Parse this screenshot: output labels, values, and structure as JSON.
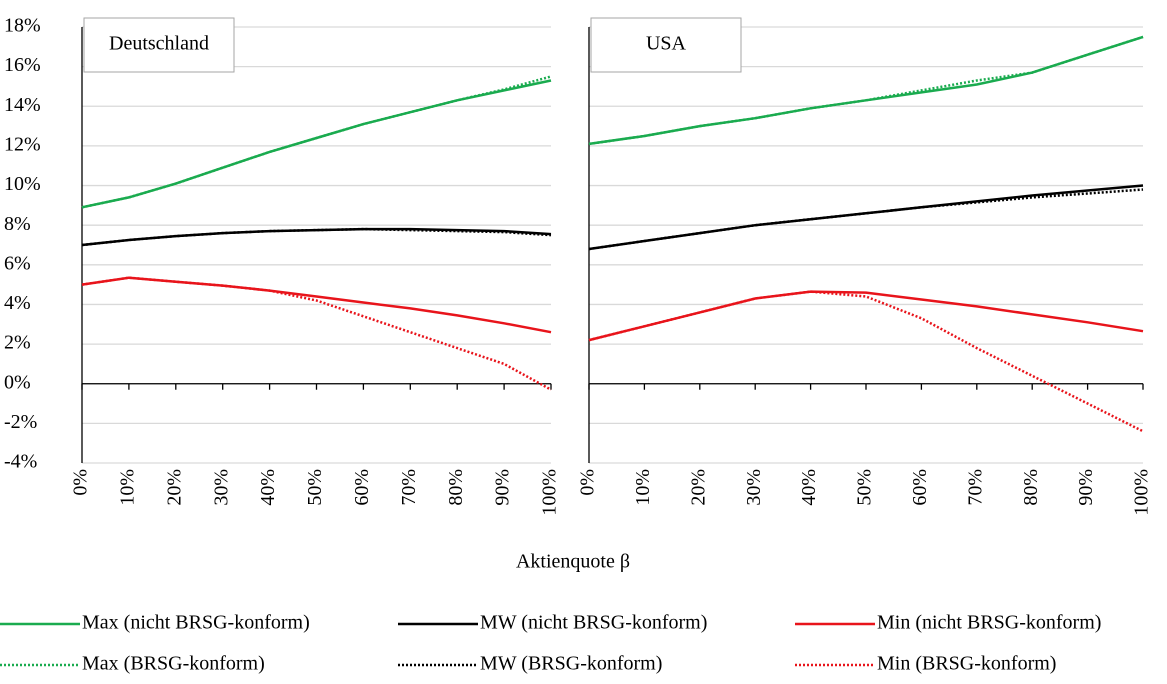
{
  "chart_data": {
    "type": "line",
    "xlabel": "Aktienquote β",
    "categories": [
      "0%",
      "10%",
      "20%",
      "30%",
      "40%",
      "50%",
      "60%",
      "70%",
      "80%",
      "90%",
      "100%"
    ],
    "ylim": [
      -4,
      18
    ],
    "yticks": [
      {
        "value": 18,
        "label": "18%"
      },
      {
        "value": 16,
        "label": "16%"
      },
      {
        "value": 14,
        "label": "14%"
      },
      {
        "value": 12,
        "label": "12%"
      },
      {
        "value": 10,
        "label": "10%"
      },
      {
        "value": 8,
        "label": "8%"
      },
      {
        "value": 6,
        "label": "6%"
      },
      {
        "value": 4,
        "label": "4%"
      },
      {
        "value": 2,
        "label": "2%"
      },
      {
        "value": 0,
        "label": "0%"
      },
      {
        "value": -2,
        "label": "-2%"
      },
      {
        "value": -4,
        "label": "-4%"
      }
    ],
    "grid": true,
    "series": [
      {
        "name": "Max (nicht BRSG-konform)",
        "color": "#1aab4f",
        "dotted": false
      },
      {
        "name": "MW (nicht BRSG-konform)",
        "color": "#000000",
        "dotted": false
      },
      {
        "name": "Min (nicht BRSG-konform)",
        "color": "#e8141b",
        "dotted": false
      },
      {
        "name": "Max (BRSG-konform)",
        "color": "#1aab4f",
        "dotted": true
      },
      {
        "name": "MW (BRSG-konform)",
        "color": "#000000",
        "dotted": true
      },
      {
        "name": "Min (BRSG-konform)",
        "color": "#e8141b",
        "dotted": true
      }
    ],
    "panels": [
      {
        "title": "Deutschland",
        "values": [
          [
            8.9,
            9.4,
            10.1,
            10.9,
            11.7,
            12.4,
            13.1,
            13.7,
            14.3,
            14.8,
            15.3
          ],
          [
            7.0,
            7.25,
            7.45,
            7.6,
            7.7,
            7.75,
            7.8,
            7.8,
            7.75,
            7.7,
            7.55
          ],
          [
            5.0,
            5.35,
            5.15,
            4.95,
            4.7,
            4.4,
            4.1,
            3.8,
            3.45,
            3.05,
            2.6
          ],
          [
            8.9,
            9.4,
            10.1,
            10.9,
            11.7,
            12.4,
            13.1,
            13.7,
            14.3,
            14.85,
            15.5
          ],
          [
            7.0,
            7.25,
            7.45,
            7.6,
            7.7,
            7.75,
            7.8,
            7.75,
            7.7,
            7.65,
            7.5
          ],
          [
            5.0,
            5.35,
            5.15,
            4.95,
            4.7,
            4.2,
            3.4,
            2.6,
            1.8,
            1.0,
            -0.3
          ]
        ]
      },
      {
        "title": "USA",
        "values": [
          [
            12.1,
            12.5,
            13.0,
            13.4,
            13.9,
            14.3,
            14.7,
            15.1,
            15.7,
            16.6,
            17.5
          ],
          [
            6.8,
            7.2,
            7.6,
            8.0,
            8.3,
            8.6,
            8.9,
            9.2,
            9.5,
            9.75,
            10.0
          ],
          [
            2.2,
            2.9,
            3.6,
            4.3,
            4.65,
            4.6,
            4.25,
            3.9,
            3.5,
            3.1,
            2.65
          ],
          [
            12.1,
            12.5,
            13.0,
            13.4,
            13.9,
            14.3,
            14.8,
            15.3,
            15.7,
            16.6,
            17.5
          ],
          [
            6.8,
            7.2,
            7.6,
            8.0,
            8.3,
            8.6,
            8.9,
            9.15,
            9.4,
            9.6,
            9.8
          ],
          [
            2.2,
            2.9,
            3.6,
            4.3,
            4.65,
            4.4,
            3.3,
            1.8,
            0.4,
            -1.0,
            -2.4
          ]
        ]
      }
    ]
  }
}
